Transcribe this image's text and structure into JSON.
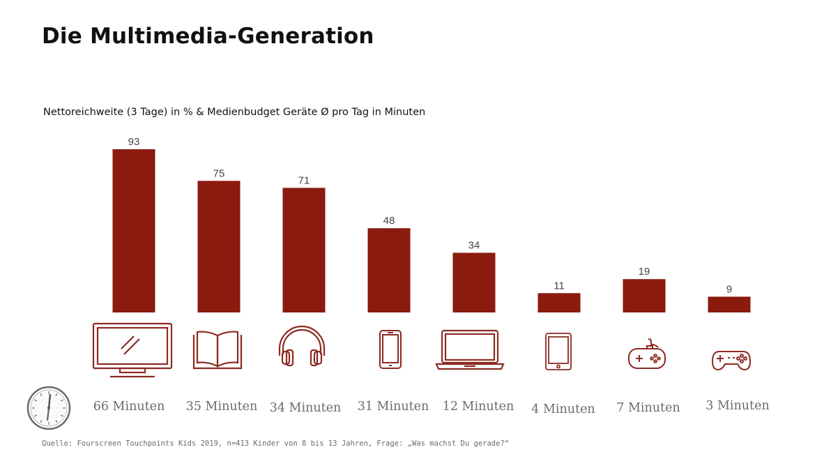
{
  "title": "Die Multimedia-Generation",
  "subtitle": "Nettoreichweite (3 Tage) in % & Medienbudget Geräte Ø pro Tag in Minuten",
  "source": "Quelle: Fourscreen Touchpoints Kids 2019, n=413 Kinder von 8 bis 13 Jahren, Frage: „Was machst Du gerade?“",
  "colors": {
    "bar": "#8b1a0f",
    "icon": "#8b2a22",
    "text_gray": "#6b6b6b"
  },
  "chart_data": {
    "type": "bar",
    "categories": [
      "tv-icon",
      "book-icon",
      "headphones-icon",
      "smartphone-icon",
      "laptop-icon",
      "tablet-icon",
      "handheld-console-icon",
      "gamepad-icon"
    ],
    "values": [
      93,
      75,
      71,
      48,
      34,
      11,
      19,
      9
    ],
    "minutes": [
      "66 Minuten",
      "35 Minuten",
      "34 Minuten",
      "31 Minuten",
      "12 Minuten",
      "4 Minuten",
      "7 Minuten",
      "3 Minuten"
    ],
    "title": "Nettoreichweite (3 Tage) in % & Medienbudget Geräte Ø pro Tag in Minuten",
    "xlabel": "",
    "ylabel": "",
    "ylim": [
      0,
      93
    ],
    "grid": false,
    "legend": "none"
  },
  "icons": [
    "clock-icon",
    "tv-icon",
    "book-icon",
    "headphones-icon",
    "smartphone-icon",
    "laptop-icon",
    "tablet-icon",
    "handheld-console-icon",
    "gamepad-icon"
  ]
}
